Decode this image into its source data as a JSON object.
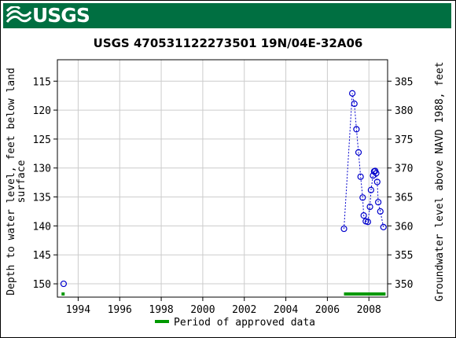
{
  "header": {
    "logo_text": "USGS"
  },
  "colors": {
    "banner": "#006f41",
    "series": "#0000cc",
    "approved": "#009900",
    "grid": "#cccccc"
  },
  "chart_data": {
    "type": "scatter",
    "title": "USGS 470531122273501 19N/04E-32A06",
    "ylabel_left": "Depth to water level, feet below land surface",
    "ylabel_left_lines": [
      "Depth to water level, feet below land",
      "surface"
    ],
    "ylabel_right": "Groundwater level above NAVD 1988, feet",
    "xlim": [
      1993.0,
      2008.9
    ],
    "ylim_left": [
      152.3,
      111.3
    ],
    "ylim_right": [
      347.7,
      388.7
    ],
    "x_ticks": [
      1994,
      1996,
      1998,
      2000,
      2002,
      2004,
      2006,
      2008
    ],
    "x_tick_labels": [
      "1994",
      "1996",
      "1998",
      "2000",
      "2002",
      "2004",
      "2006",
      "2008"
    ],
    "y_ticks_left": [
      115,
      120,
      125,
      130,
      135,
      140,
      145,
      150
    ],
    "y_tick_labels_left": [
      "115",
      "120",
      "125",
      "130",
      "135",
      "140",
      "145",
      "150"
    ],
    "y_ticks_right": [
      350,
      355,
      360,
      365,
      370,
      375,
      380,
      385
    ],
    "y_tick_labels_right": [
      "350",
      "355",
      "360",
      "365",
      "370",
      "375",
      "380",
      "385"
    ],
    "grid": true,
    "series": [
      {
        "points": [
          {
            "x": 1993.3,
            "y": 150.0
          },
          {
            "x": 2006.8,
            "y": 140.5
          },
          {
            "x": 2007.2,
            "y": 117.1
          },
          {
            "x": 2007.3,
            "y": 118.9
          },
          {
            "x": 2007.4,
            "y": 123.3
          },
          {
            "x": 2007.5,
            "y": 127.3
          },
          {
            "x": 2007.6,
            "y": 131.5
          },
          {
            "x": 2007.7,
            "y": 135.1
          },
          {
            "x": 2007.75,
            "y": 138.2
          },
          {
            "x": 2007.85,
            "y": 139.2
          },
          {
            "x": 2007.95,
            "y": 139.3
          },
          {
            "x": 2008.05,
            "y": 136.7
          },
          {
            "x": 2008.1,
            "y": 133.8
          },
          {
            "x": 2008.2,
            "y": 131.3
          },
          {
            "x": 2008.25,
            "y": 130.6
          },
          {
            "x": 2008.3,
            "y": 130.5
          },
          {
            "x": 2008.35,
            "y": 130.9
          },
          {
            "x": 2008.4,
            "y": 132.4
          },
          {
            "x": 2008.45,
            "y": 135.9
          },
          {
            "x": 2008.55,
            "y": 137.5
          },
          {
            "x": 2008.7,
            "y": 140.2
          }
        ],
        "connected_from_index": 1
      }
    ],
    "approved_periods": [
      {
        "start": 1993.2,
        "end": 1993.35
      },
      {
        "start": 2006.8,
        "end": 2008.8
      }
    ],
    "legend": {
      "label": "Period of approved data",
      "position": "bottom-center"
    }
  }
}
